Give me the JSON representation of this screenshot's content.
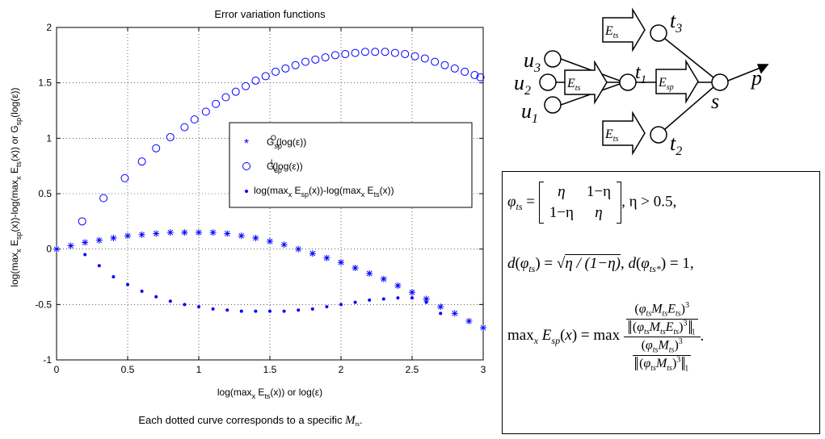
{
  "chart_data": {
    "type": "scatter",
    "title": "Error variation functions",
    "xlabel": "log(max_x E_ts(x))  or  log(ε)",
    "ylabel": "log(max_x E_sp(x))-log(max_x E_ts(x))  or  G_sp(log(ε))",
    "xlim": [
      0,
      3
    ],
    "ylim": [
      -1,
      2
    ],
    "xticks": [
      "0",
      "0.5",
      "1",
      "1.5",
      "2",
      "2.5",
      "3"
    ],
    "yticks": [
      "-1",
      "-0.5",
      "0",
      "0.5",
      "1",
      "1.5",
      "2"
    ],
    "grid": true,
    "legend_position": "center-right",
    "color": "#0000ff",
    "series": [
      {
        "name": "G_sp^O(log(ε))",
        "marker": "asterisk",
        "x": [
          0.0,
          0.1,
          0.2,
          0.3,
          0.4,
          0.5,
          0.6,
          0.7,
          0.8,
          0.9,
          1.0,
          1.1,
          1.2,
          1.3,
          1.4,
          1.5,
          1.6,
          1.7,
          1.8,
          1.9,
          2.0,
          2.1,
          2.2,
          2.3,
          2.4,
          2.5,
          2.6,
          2.7,
          2.8,
          2.9,
          3.0
        ],
        "y": [
          0.0,
          0.03,
          0.06,
          0.08,
          0.1,
          0.12,
          0.13,
          0.14,
          0.15,
          0.15,
          0.15,
          0.15,
          0.14,
          0.12,
          0.1,
          0.07,
          0.04,
          0.0,
          -0.04,
          -0.08,
          -0.12,
          -0.17,
          -0.22,
          -0.27,
          -0.33,
          -0.39,
          -0.45,
          -0.52,
          -0.58,
          -0.65,
          -0.71
        ]
      },
      {
        "name": "G_sp^I(log(ε))",
        "marker": "circle",
        "x": [
          0.18,
          0.33,
          0.48,
          0.6,
          0.7,
          0.8,
          0.9,
          0.97,
          1.05,
          1.12,
          1.19,
          1.26,
          1.33,
          1.4,
          1.47,
          1.54,
          1.61,
          1.68,
          1.75,
          1.82,
          1.89,
          1.96,
          2.03,
          2.1,
          2.17,
          2.24,
          2.31,
          2.38,
          2.45,
          2.52,
          2.59,
          2.66,
          2.73,
          2.8,
          2.87,
          2.94,
          2.98
        ],
        "y": [
          0.25,
          0.46,
          0.64,
          0.79,
          0.91,
          1.01,
          1.1,
          1.17,
          1.24,
          1.31,
          1.37,
          1.42,
          1.47,
          1.52,
          1.56,
          1.6,
          1.63,
          1.66,
          1.69,
          1.71,
          1.73,
          1.75,
          1.76,
          1.77,
          1.78,
          1.78,
          1.78,
          1.77,
          1.76,
          1.74,
          1.72,
          1.69,
          1.66,
          1.63,
          1.6,
          1.57,
          1.55
        ]
      },
      {
        "name": "log(max_x E_sp(x))-log(max_x E_ts(x))",
        "marker": "dot",
        "x": [
          0.2,
          0.3,
          0.4,
          0.5,
          0.6,
          0.7,
          0.8,
          0.9,
          1.0,
          1.1,
          1.2,
          1.3,
          1.4,
          1.5,
          1.6,
          1.7,
          1.8,
          1.9,
          2.0,
          2.1,
          2.2,
          2.3,
          2.4,
          2.5,
          2.6,
          2.7
        ],
        "y": [
          -0.05,
          -0.15,
          -0.25,
          -0.32,
          -0.38,
          -0.43,
          -0.47,
          -0.5,
          -0.52,
          -0.54,
          -0.55,
          -0.56,
          -0.56,
          -0.56,
          -0.56,
          -0.55,
          -0.54,
          -0.52,
          -0.5,
          -0.48,
          -0.46,
          -0.45,
          -0.44,
          -0.44,
          -0.48,
          -0.58
        ]
      }
    ]
  },
  "legend_labels": [
    "G",
    "G",
    "log(max",
    " E",
    "(x))-log(max",
    " E",
    "(x))"
  ],
  "legend_sub": [
    "sp",
    "sp",
    "x",
    "sp",
    "x",
    "ts"
  ],
  "legend_sup": [
    "O",
    "I"
  ],
  "legend_arg": [
    "(log(ε))",
    "(log(ε))"
  ],
  "xlabel_parts": {
    "a": "log(max",
    "x": "x",
    "b": " E",
    "ts": "ts",
    "c": "(x))  or  log(ε)"
  },
  "ylabel_parts": {
    "a": "log(max",
    "x1": "x",
    "b": " E",
    "sp": "sp",
    "c": "(x))-log(max",
    "x2": "x",
    "d": " E",
    "ts": "ts",
    "e": "(x))  or  G",
    "sp2": "sp",
    "f": "(log(ε))"
  },
  "caption": {
    "text": "Each dotted curve corresponds to a specific ",
    "symbol": "M",
    "sub": "ts",
    "end": "."
  },
  "network": {
    "nodes": [
      "u",
      "u",
      "u",
      "t",
      "t",
      "t",
      "s",
      "p"
    ],
    "node_subs": [
      "3",
      "2",
      "1",
      "3",
      "1",
      "2"
    ],
    "blocks": [
      "E",
      "E",
      "E",
      "E"
    ],
    "block_subs": [
      "ts",
      "ts",
      "ts",
      "sp",
      "ts"
    ]
  },
  "equations": {
    "phi": "φ",
    "ts": "ts",
    "eta": "η",
    "one_minus_eta": "1−η",
    "cond": ", η > 0.5,",
    "d": "d",
    "sqrt_content": "η / (1−η)",
    "dstar": "ts*",
    "deq": ") = 1,",
    "max": "max",
    "sub_x": "x",
    "E": "E",
    "sp": "sp",
    "Mts": "M",
    "three": "3",
    "one": "1"
  }
}
